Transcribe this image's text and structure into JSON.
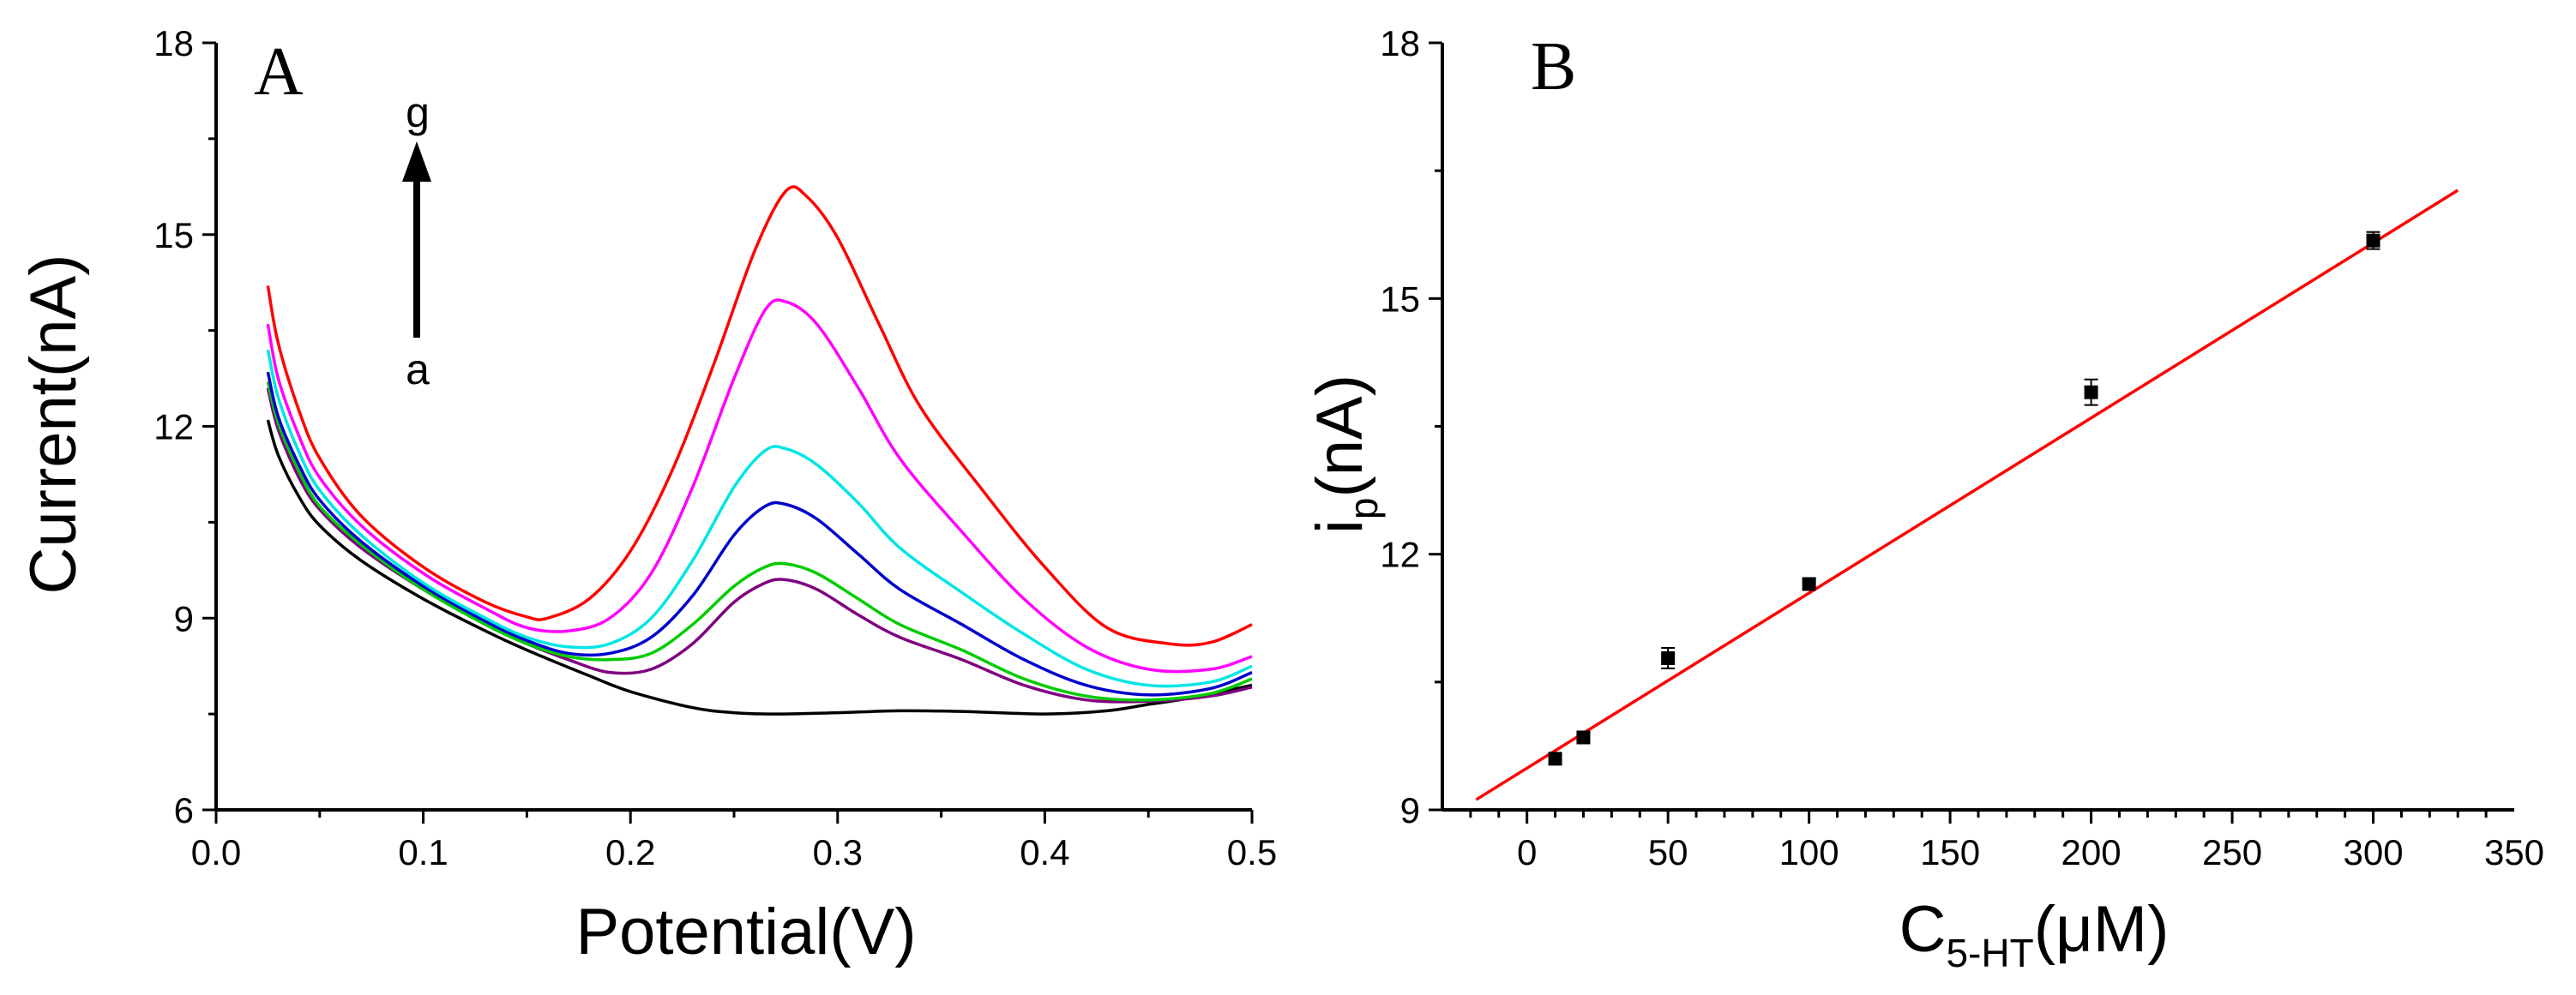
{
  "chart_data": [
    {
      "type": "line",
      "panel_label": "A",
      "xlabel": "Potential(V)",
      "ylabel": "Current(nA)",
      "xlim": [
        0.0,
        0.5
      ],
      "ylim": [
        6,
        18
      ],
      "xticks": [
        "0.0",
        "0.1",
        "0.2",
        "0.3",
        "0.4",
        "0.5"
      ],
      "yticks": [
        "6",
        "9",
        "12",
        "15",
        "18"
      ],
      "annotation": {
        "top": "g",
        "bottom": "a"
      },
      "series": [
        {
          "color": "#000000",
          "points": [
            [
              0.025,
              12.1
            ],
            [
              0.03,
              11.55
            ],
            [
              0.04,
              10.9
            ],
            [
              0.05,
              10.45
            ],
            [
              0.07,
              9.9
            ],
            [
              0.1,
              9.3
            ],
            [
              0.13,
              8.8
            ],
            [
              0.15,
              8.5
            ],
            [
              0.18,
              8.1
            ],
            [
              0.2,
              7.85
            ],
            [
              0.23,
              7.6
            ],
            [
              0.25,
              7.52
            ],
            [
              0.27,
              7.5
            ],
            [
              0.3,
              7.52
            ],
            [
              0.33,
              7.55
            ],
            [
              0.36,
              7.54
            ],
            [
              0.4,
              7.5
            ],
            [
              0.43,
              7.55
            ],
            [
              0.45,
              7.65
            ],
            [
              0.47,
              7.75
            ],
            [
              0.5,
              7.95
            ]
          ]
        },
        {
          "color": "#800080",
          "points": [
            [
              0.025,
              12.6
            ],
            [
              0.03,
              11.95
            ],
            [
              0.04,
              11.2
            ],
            [
              0.05,
              10.7
            ],
            [
              0.07,
              10.1
            ],
            [
              0.1,
              9.45
            ],
            [
              0.13,
              8.9
            ],
            [
              0.15,
              8.6
            ],
            [
              0.17,
              8.35
            ],
            [
              0.19,
              8.15
            ],
            [
              0.21,
              8.2
            ],
            [
              0.23,
              8.6
            ],
            [
              0.25,
              9.25
            ],
            [
              0.265,
              9.55
            ],
            [
              0.275,
              9.6
            ],
            [
              0.29,
              9.45
            ],
            [
              0.31,
              9.05
            ],
            [
              0.33,
              8.7
            ],
            [
              0.36,
              8.35
            ],
            [
              0.39,
              7.95
            ],
            [
              0.42,
              7.72
            ],
            [
              0.45,
              7.7
            ],
            [
              0.48,
              7.78
            ],
            [
              0.5,
              7.92
            ]
          ]
        },
        {
          "color": "#00cc00",
          "points": [
            [
              0.025,
              12.7
            ],
            [
              0.03,
              12.05
            ],
            [
              0.04,
              11.3
            ],
            [
              0.05,
              10.75
            ],
            [
              0.07,
              10.15
            ],
            [
              0.1,
              9.45
            ],
            [
              0.13,
              8.9
            ],
            [
              0.15,
              8.6
            ],
            [
              0.17,
              8.4
            ],
            [
              0.19,
              8.35
            ],
            [
              0.21,
              8.45
            ],
            [
              0.23,
              8.9
            ],
            [
              0.25,
              9.5
            ],
            [
              0.265,
              9.8
            ],
            [
              0.275,
              9.85
            ],
            [
              0.29,
              9.7
            ],
            [
              0.31,
              9.3
            ],
            [
              0.33,
              8.9
            ],
            [
              0.36,
              8.5
            ],
            [
              0.39,
              8.05
            ],
            [
              0.42,
              7.78
            ],
            [
              0.45,
              7.72
            ],
            [
              0.48,
              7.82
            ],
            [
              0.5,
              8.05
            ]
          ]
        },
        {
          "color": "#0000cc",
          "points": [
            [
              0.025,
              12.85
            ],
            [
              0.03,
              12.15
            ],
            [
              0.04,
              11.4
            ],
            [
              0.05,
              10.85
            ],
            [
              0.07,
              10.2
            ],
            [
              0.1,
              9.5
            ],
            [
              0.13,
              8.95
            ],
            [
              0.15,
              8.65
            ],
            [
              0.17,
              8.45
            ],
            [
              0.19,
              8.45
            ],
            [
              0.21,
              8.7
            ],
            [
              0.23,
              9.35
            ],
            [
              0.25,
              10.3
            ],
            [
              0.265,
              10.75
            ],
            [
              0.275,
              10.78
            ],
            [
              0.29,
              10.55
            ],
            [
              0.31,
              10.0
            ],
            [
              0.33,
              9.45
            ],
            [
              0.36,
              8.9
            ],
            [
              0.39,
              8.35
            ],
            [
              0.42,
              7.95
            ],
            [
              0.45,
              7.8
            ],
            [
              0.48,
              7.9
            ],
            [
              0.5,
              8.15
            ]
          ]
        },
        {
          "color": "#00e5e5",
          "points": [
            [
              0.025,
              13.2
            ],
            [
              0.03,
              12.45
            ],
            [
              0.04,
              11.6
            ],
            [
              0.05,
              11.0
            ],
            [
              0.07,
              10.3
            ],
            [
              0.1,
              9.55
            ],
            [
              0.13,
              9.0
            ],
            [
              0.15,
              8.7
            ],
            [
              0.17,
              8.55
            ],
            [
              0.19,
              8.6
            ],
            [
              0.21,
              9.0
            ],
            [
              0.23,
              9.9
            ],
            [
              0.25,
              11.05
            ],
            [
              0.265,
              11.62
            ],
            [
              0.275,
              11.65
            ],
            [
              0.29,
              11.4
            ],
            [
              0.31,
              10.8
            ],
            [
              0.33,
              10.1
            ],
            [
              0.36,
              9.4
            ],
            [
              0.39,
              8.75
            ],
            [
              0.42,
              8.2
            ],
            [
              0.45,
              7.95
            ],
            [
              0.48,
              8.0
            ],
            [
              0.5,
              8.25
            ]
          ]
        },
        {
          "color": "#ff00ff",
          "points": [
            [
              0.025,
              13.6
            ],
            [
              0.03,
              12.75
            ],
            [
              0.04,
              11.85
            ],
            [
              0.05,
              11.2
            ],
            [
              0.07,
              10.45
            ],
            [
              0.1,
              9.7
            ],
            [
              0.13,
              9.15
            ],
            [
              0.15,
              8.85
            ],
            [
              0.17,
              8.8
            ],
            [
              0.19,
              9.0
            ],
            [
              0.21,
              9.7
            ],
            [
              0.23,
              11.05
            ],
            [
              0.25,
              12.75
            ],
            [
              0.265,
              13.82
            ],
            [
              0.275,
              13.95
            ],
            [
              0.29,
              13.6
            ],
            [
              0.31,
              12.6
            ],
            [
              0.33,
              11.5
            ],
            [
              0.36,
              10.35
            ],
            [
              0.39,
              9.3
            ],
            [
              0.42,
              8.55
            ],
            [
              0.45,
              8.2
            ],
            [
              0.48,
              8.2
            ],
            [
              0.5,
              8.4
            ]
          ]
        },
        {
          "color": "#ff0000",
          "points": [
            [
              0.025,
              14.2
            ],
            [
              0.03,
              13.3
            ],
            [
              0.04,
              12.25
            ],
            [
              0.05,
              11.5
            ],
            [
              0.07,
              10.6
            ],
            [
              0.1,
              9.8
            ],
            [
              0.13,
              9.25
            ],
            [
              0.15,
              9.02
            ],
            [
              0.16,
              9.0
            ],
            [
              0.18,
              9.3
            ],
            [
              0.2,
              10.05
            ],
            [
              0.22,
              11.3
            ],
            [
              0.24,
              12.95
            ],
            [
              0.26,
              14.75
            ],
            [
              0.275,
              15.68
            ],
            [
              0.285,
              15.6
            ],
            [
              0.3,
              14.95
            ],
            [
              0.32,
              13.6
            ],
            [
              0.34,
              12.3
            ],
            [
              0.37,
              11.0
            ],
            [
              0.4,
              9.8
            ],
            [
              0.43,
              8.85
            ],
            [
              0.46,
              8.6
            ],
            [
              0.48,
              8.62
            ],
            [
              0.5,
              8.9
            ]
          ]
        }
      ]
    },
    {
      "type": "scatter",
      "panel_label": "B",
      "xlabel_main": "C",
      "xlabel_sub": "5-HT",
      "xlabel_unit": "(μM)",
      "ylabel_main": "i",
      "ylabel_sub": "p",
      "ylabel_unit": "(nA)",
      "xlim": [
        -30,
        350
      ],
      "ylim": [
        9,
        18
      ],
      "xticks": [
        "0",
        "50",
        "100",
        "150",
        "200",
        "250",
        "300",
        "350"
      ],
      "yticks": [
        "9",
        "12",
        "15",
        "18"
      ],
      "points": [
        {
          "x": 10,
          "y": 9.6,
          "err": 0.06
        },
        {
          "x": 20,
          "y": 9.85,
          "err": 0.06
        },
        {
          "x": 50,
          "y": 10.78,
          "err": 0.12
        },
        {
          "x": 100,
          "y": 11.65,
          "err": 0.06
        },
        {
          "x": 200,
          "y": 13.9,
          "err": 0.15
        },
        {
          "x": 300,
          "y": 15.68,
          "err": 0.1
        }
      ],
      "fit": {
        "color": "#ff0000",
        "x": [
          -18,
          330
        ],
        "y": [
          9.12,
          16.27
        ]
      }
    }
  ]
}
